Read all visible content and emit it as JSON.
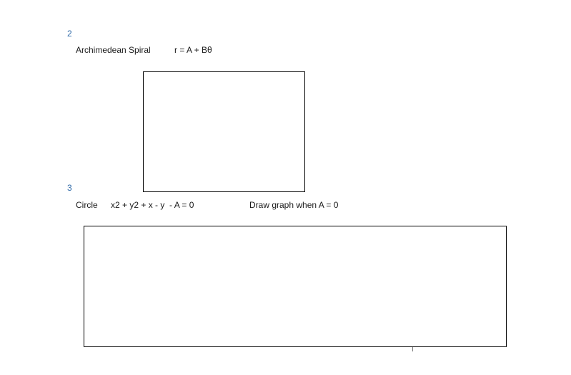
{
  "items": [
    {
      "number": "2",
      "name": "Archimedean Spiral",
      "equation": "r = A + Bθ"
    },
    {
      "number": "3",
      "name": "Circle",
      "equation": "x2 + y2 + x - y  - A = 0",
      "instruction": "Draw graph when A = 0"
    }
  ]
}
